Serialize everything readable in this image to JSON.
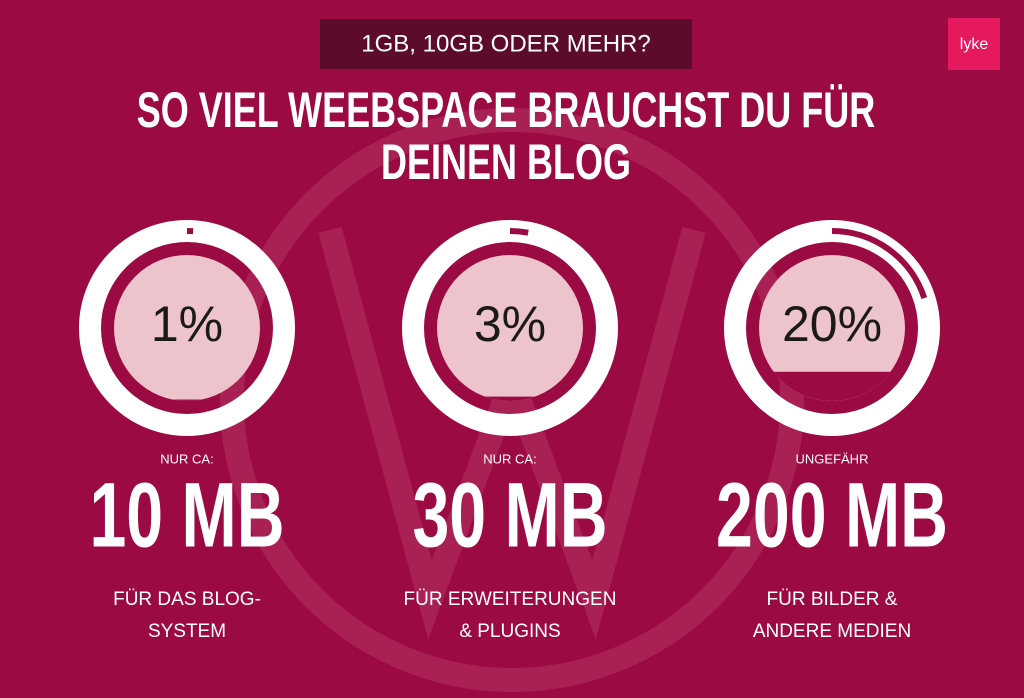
{
  "header": {
    "badge": "1GB, 10GB ODER MEHR?",
    "title_lines": [
      "SO VIEL WEEBSPACE BRAUCHST DU FÜR",
      "DEINEN BLOG"
    ],
    "logo": "lyke"
  },
  "items": [
    {
      "percent": 1,
      "percent_label": "1%",
      "prefix": "NUR CA:",
      "amount": "10 MB",
      "description": [
        "FÜR DAS BLOG-",
        "SYSTEM"
      ]
    },
    {
      "percent": 3,
      "percent_label": "3%",
      "prefix": "NUR CA:",
      "amount": "30 MB",
      "description": [
        "FÜR ERWEITERUNGEN",
        "& PLUGINS"
      ]
    },
    {
      "percent": 20,
      "percent_label": "20%",
      "prefix": "UNGEFÄHR",
      "amount": "200 MB",
      "description": [
        "FÜR BILDER &",
        "ANDERE MEDIEN"
      ]
    }
  ]
}
